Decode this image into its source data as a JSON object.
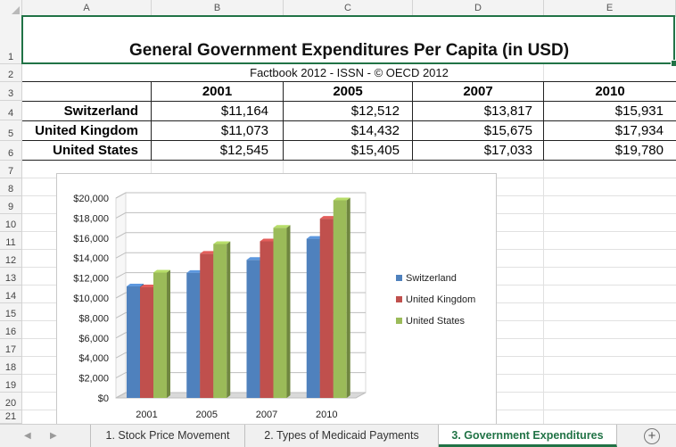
{
  "columns": [
    "A",
    "B",
    "C",
    "D",
    "E"
  ],
  "rows": [
    "1",
    "2",
    "3",
    "4",
    "5",
    "6",
    "7",
    "8",
    "9",
    "10",
    "11",
    "12",
    "13",
    "14",
    "15",
    "16",
    "17",
    "18",
    "19",
    "20",
    "21"
  ],
  "sheet": {
    "title": "General Government Expenditures Per Capita (in USD)",
    "source": "Factbook 2012 - ISSN  - © OECD 2012",
    "years": [
      "2001",
      "2005",
      "2007",
      "2010"
    ],
    "rows": [
      {
        "country": "Switzerland",
        "values": [
          "$11,164",
          "$12,512",
          "$13,817",
          "$15,931"
        ]
      },
      {
        "country": "United Kingdom",
        "values": [
          "$11,073",
          "$14,432",
          "$15,675",
          "$17,934"
        ]
      },
      {
        "country": "United States",
        "values": [
          "$12,545",
          "$15,405",
          "$17,033",
          "$19,780"
        ]
      }
    ]
  },
  "chart_data": {
    "type": "bar",
    "categories": [
      "2001",
      "2005",
      "2007",
      "2010"
    ],
    "series": [
      {
        "name": "Switzerland",
        "values": [
          11164,
          12512,
          13817,
          15931
        ],
        "color": "#4f81bd"
      },
      {
        "name": "United Kingdom",
        "values": [
          11073,
          14432,
          15675,
          17934
        ],
        "color": "#c0504d"
      },
      {
        "name": "United States",
        "values": [
          12545,
          15405,
          17033,
          19780
        ],
        "color": "#9bbb59"
      }
    ],
    "yticks": [
      "$0",
      "$2,000",
      "$4,000",
      "$6,000",
      "$8,000",
      "$10,000",
      "$12,000",
      "$14,000",
      "$16,000",
      "$18,000",
      "$20,000"
    ],
    "ylim": [
      0,
      20000
    ],
    "grid": true,
    "legend": "right",
    "style": "3d-column"
  },
  "tabs": {
    "items": [
      "1. Stock Price Movement",
      "2. Types of Medicaid Payments",
      "3. Government Expenditures"
    ],
    "active": 2,
    "add_icon": "plus-circle-icon",
    "nav_icons": [
      "prev-sheet-icon",
      "next-sheet-icon"
    ]
  },
  "colors": {
    "accent": "#217346"
  }
}
